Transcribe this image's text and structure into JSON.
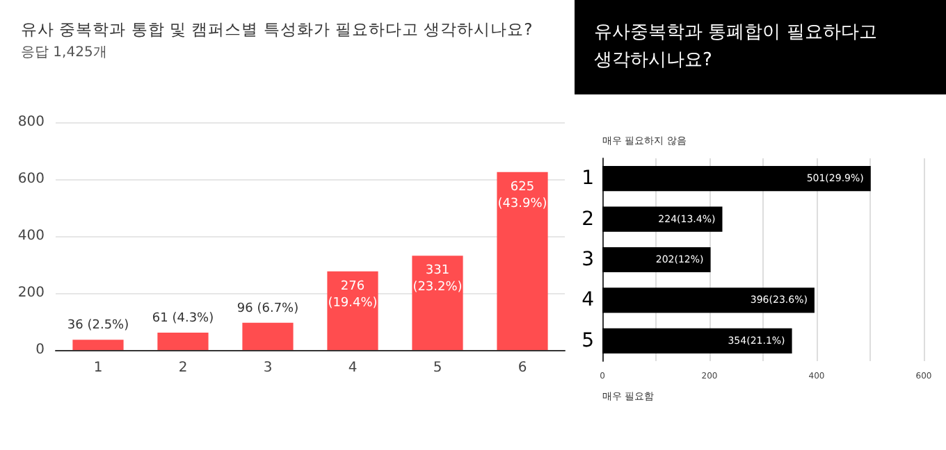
{
  "chart_data": [
    {
      "type": "bar",
      "title": "유사 중복학과 통합 및 캠퍼스별 특성화가 필요하다고 생각하시나요?",
      "subtitle": "응답 1,425개",
      "categories": [
        "1",
        "2",
        "3",
        "4",
        "5",
        "6"
      ],
      "values": [
        36,
        61,
        96,
        276,
        331,
        625
      ],
      "value_labels": [
        "36 (2.5%)",
        "61 (4.3%)",
        "96 (6.7%)",
        "276\n(19.4%)",
        "331\n(23.2%)",
        "625\n(43.9%)"
      ],
      "color": "#ff4d4f",
      "ylim": [
        0,
        800
      ],
      "yticks": [
        0,
        200,
        400,
        600,
        800
      ],
      "grid": "y"
    },
    {
      "type": "bar",
      "orientation": "horizontal",
      "title": "유사중복학과 통폐합이 필요하다고\n생각하시나요?",
      "categories": [
        "1",
        "2",
        "3",
        "4",
        "5"
      ],
      "values": [
        501,
        224,
        202,
        396,
        354
      ],
      "value_labels": [
        "501(29.9%)",
        "224(13.4%)",
        "202(12%)",
        "396(23.6%)",
        "354(21.1%)"
      ],
      "color": "#000000",
      "xlim": [
        0,
        600
      ],
      "xticks": [
        0,
        200,
        400,
        600
      ],
      "grid": "x",
      "annotations": [
        "매우 필요하지 않음",
        "매우 필요함"
      ]
    }
  ]
}
